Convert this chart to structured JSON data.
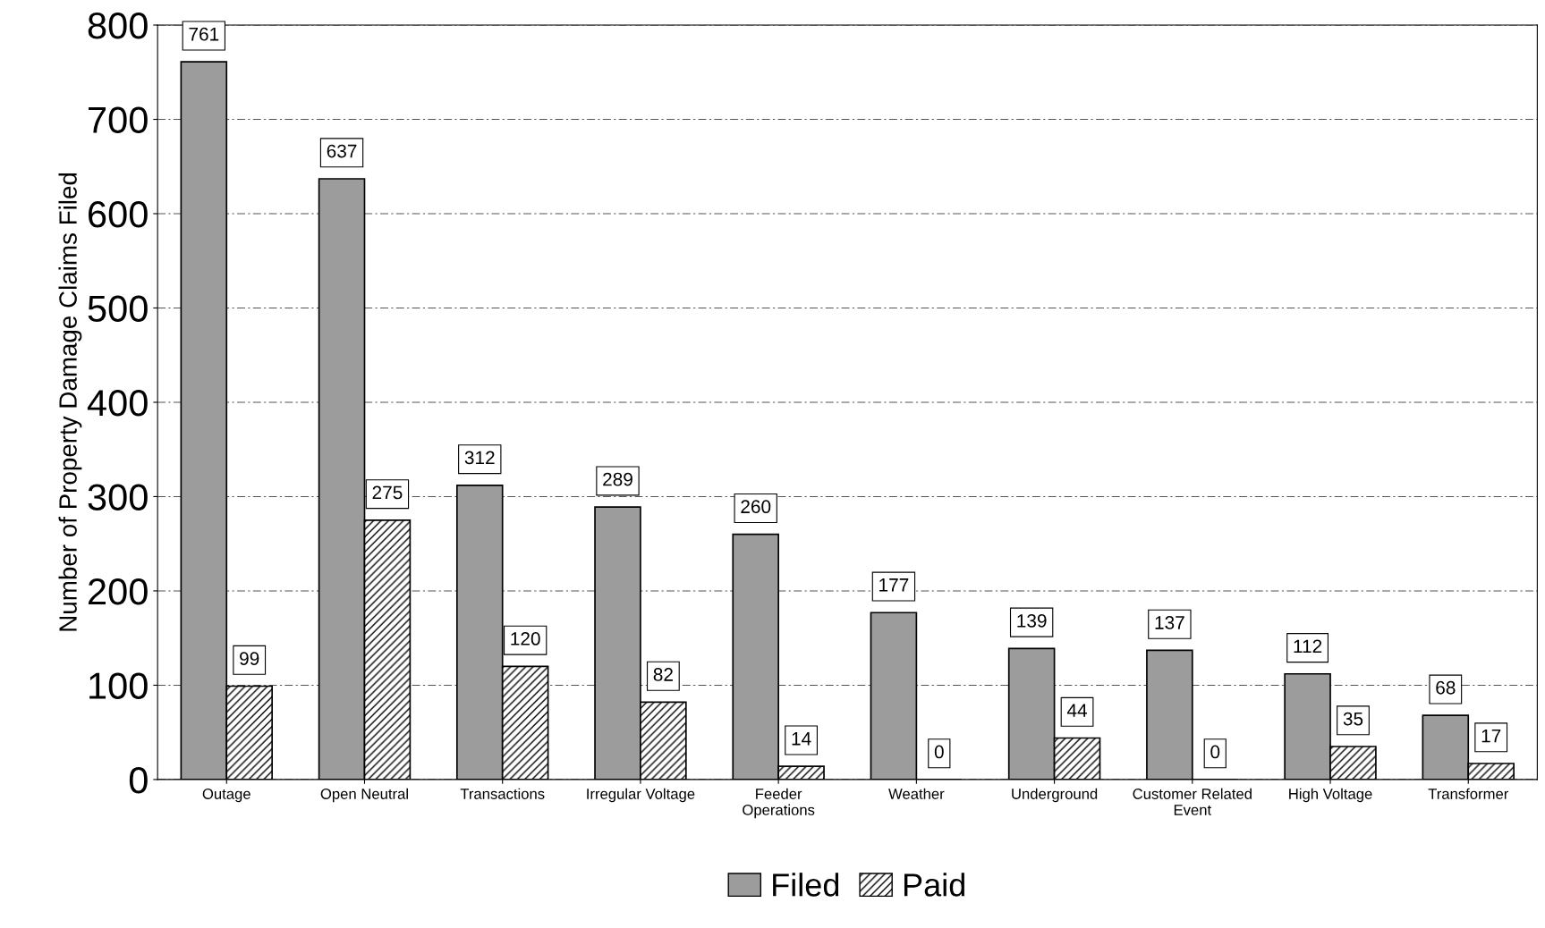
{
  "chart_data": {
    "type": "bar",
    "ylabel": "Number of Property Damage Claims Filed",
    "categories": [
      "Outage",
      "Open Neutral",
      "Transactions",
      "Irregular Voltage",
      "Feeder\nOperations",
      "Weather",
      "Underground",
      "Customer Related\nEvent",
      "High Voltage",
      "Transformer"
    ],
    "series": [
      {
        "name": "Filed",
        "color": "#9c9c9c",
        "values": [
          761,
          637,
          312,
          289,
          260,
          177,
          139,
          137,
          112,
          68
        ]
      },
      {
        "name": "Paid",
        "color": "#000000",
        "values": [
          99,
          275,
          120,
          82,
          14,
          0,
          44,
          0,
          35,
          17
        ]
      }
    ],
    "ylim": [
      0,
      800
    ],
    "yticks": [
      0,
      100,
      200,
      300,
      400,
      500,
      600,
      700,
      800
    ],
    "grid": "y",
    "legend": "bottom",
    "data_labels": true
  }
}
